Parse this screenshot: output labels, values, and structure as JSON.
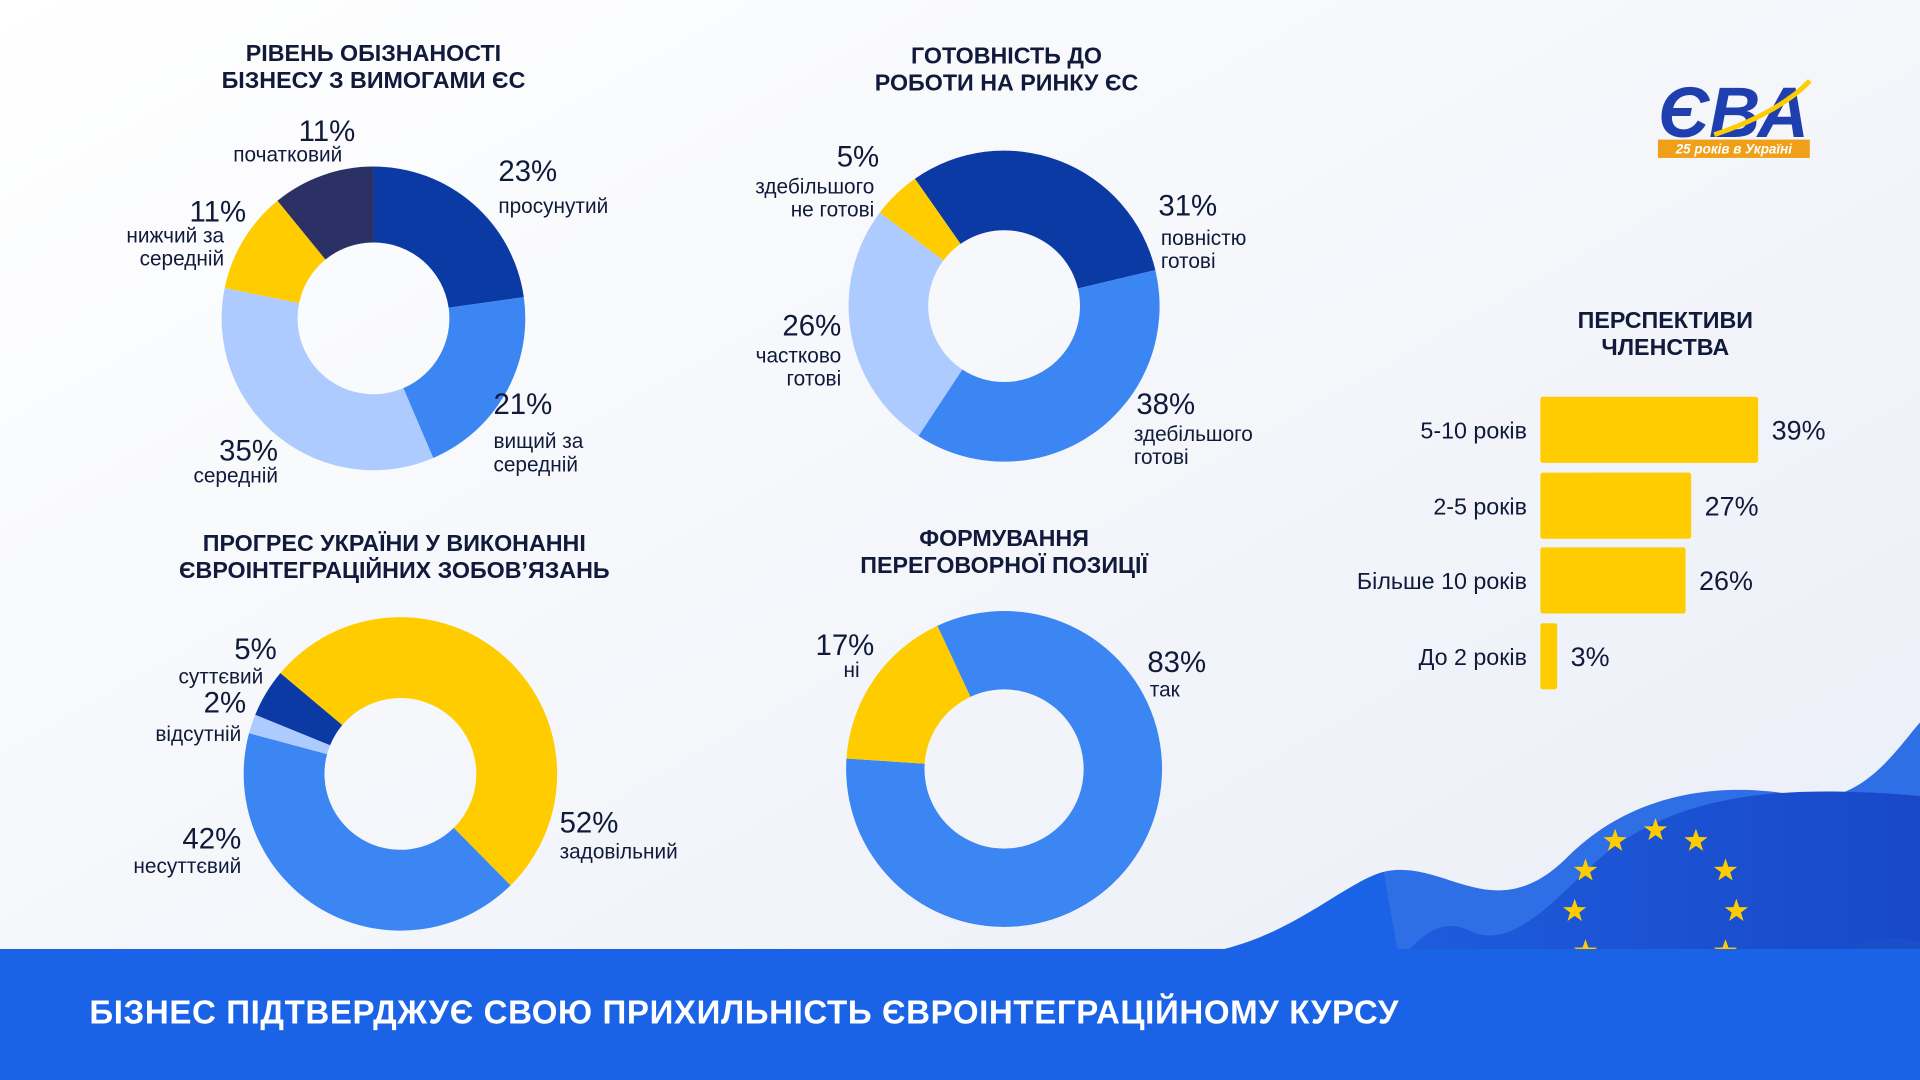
{
  "logo": {
    "name": "ЄВА",
    "tagline": "25 років в Україні"
  },
  "banner": "БІЗНЕС ПІДТВЕРДЖУЄ СВОЮ ПРИХИЛЬНІСТЬ ЄВРОІНТЕГРАЦІЙНОМУ КУРСУ",
  "chart_data": [
    {
      "type": "donut",
      "title": "РІВЕНЬ ОБІЗНАНОСТІ\nБІЗНЕСУ З ВИМОГАМИ ЄС",
      "categories": [
        "просунутий",
        "вищий за\nсередній",
        "середній",
        "нижчий за\nсередній",
        "початковий"
      ],
      "values": [
        23,
        21,
        35,
        11,
        11
      ],
      "value_labels": [
        "23%",
        "21%",
        "35%",
        "11%",
        "11%"
      ],
      "colors": [
        "#0b3aa4",
        "#3b86f2",
        "#aecbff",
        "#ffcc00",
        "#2b3165"
      ]
    },
    {
      "type": "donut",
      "title": "ГОТОВНІСТЬ ДО\nРОБОТИ НА РИНКУ ЄС",
      "categories": [
        "повністю\nготові",
        "здебільшого\nготові",
        "частково\nготові",
        "здебільшого\nне готові"
      ],
      "values": [
        31,
        38,
        26,
        5
      ],
      "value_labels": [
        "31%",
        "38%",
        "26%",
        "5%"
      ],
      "colors": [
        "#0b3aa4",
        "#3b86f2",
        "#aecbff",
        "#ffcc00"
      ]
    },
    {
      "type": "donut",
      "title": "ПРОГРЕС УКРАЇНИ У ВИКОНАННІ\nЄВРОІНТЕГРАЦІЙНИХ ЗОБОВ’ЯЗАНЬ",
      "categories": [
        "задовільний",
        "несуттєвий",
        "відсутній",
        "суттєвий"
      ],
      "values": [
        52,
        42,
        2,
        5
      ],
      "value_labels": [
        "52%",
        "42%",
        "2%",
        "5%"
      ],
      "colors": [
        "#ffcc00",
        "#3b86f2",
        "#aecbff",
        "#0b3aa4"
      ]
    },
    {
      "type": "donut",
      "title": "ФОРМУВАННЯ\nПЕРЕГОВОРНОЇ ПОЗИЦІЇ",
      "categories": [
        "так",
        "ні"
      ],
      "values": [
        83,
        17
      ],
      "value_labels": [
        "83%",
        "17%"
      ],
      "colors": [
        "#3b86f2",
        "#ffcc00"
      ]
    },
    {
      "type": "hbar",
      "title": "ПЕРСПЕКТИВИ\nЧЛЕНСТВА",
      "categories": [
        "5-10 років",
        "2-5 років",
        "Більше 10 років",
        "До 2 років"
      ],
      "values": [
        39,
        27,
        26,
        3
      ],
      "value_labels": [
        "39%",
        "27%",
        "26%",
        "3%"
      ],
      "color": "#ffcc00"
    }
  ]
}
